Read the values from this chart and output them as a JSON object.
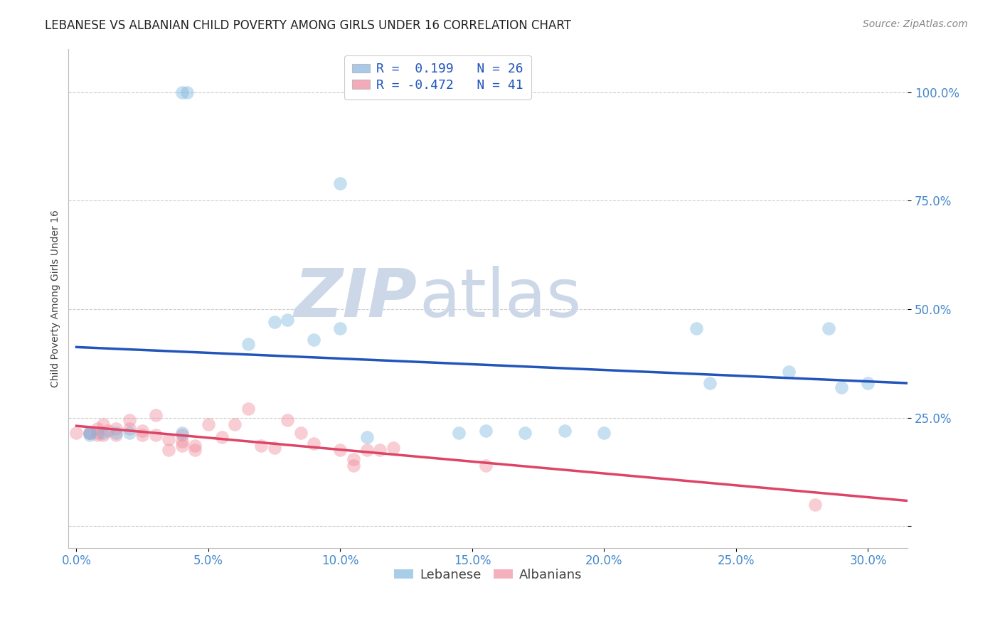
{
  "title": "LEBANESE VS ALBANIAN CHILD POVERTY AMONG GIRLS UNDER 16 CORRELATION CHART",
  "source": "Source: ZipAtlas.com",
  "ylabel": "Child Poverty Among Girls Under 16",
  "ytick_vals": [
    0.0,
    0.25,
    0.5,
    0.75,
    1.0
  ],
  "ytick_labels": [
    "",
    "25.0%",
    "50.0%",
    "75.0%",
    "100.0%"
  ],
  "xtick_vals": [
    0.0,
    0.05,
    0.1,
    0.15,
    0.2,
    0.25,
    0.3
  ],
  "xtick_labels": [
    "0.0%",
    "5.0%",
    "10.0%",
    "15.0%",
    "20.0%",
    "25.0%",
    "30.0%"
  ],
  "xmin": -0.003,
  "xmax": 0.315,
  "ymin": -0.05,
  "ymax": 1.1,
  "watermark_top": "ZIP",
  "watermark_bot": "atlas",
  "legend_entries": [
    {
      "label": "R =  0.199   N = 26",
      "color": "#aac8e8"
    },
    {
      "label": "R = -0.472   N = 41",
      "color": "#f4aab8"
    }
  ],
  "lebanese_color": "#82b8e0",
  "albanian_color": "#f090a0",
  "lebanese_line_color": "#2255bb",
  "albanian_line_color": "#dd4466",
  "lebanese_points_x": [
    0.04,
    0.042,
    0.1,
    0.065,
    0.075,
    0.08,
    0.09,
    0.1,
    0.11,
    0.145,
    0.155,
    0.17,
    0.185,
    0.2,
    0.235,
    0.24,
    0.27,
    0.285,
    0.29,
    0.3,
    0.005,
    0.005,
    0.01,
    0.015,
    0.02,
    0.04
  ],
  "lebanese_points_y": [
    1.0,
    1.0,
    0.79,
    0.42,
    0.47,
    0.475,
    0.43,
    0.455,
    0.205,
    0.215,
    0.22,
    0.215,
    0.22,
    0.215,
    0.455,
    0.33,
    0.355,
    0.455,
    0.32,
    0.33,
    0.215,
    0.21,
    0.215,
    0.215,
    0.215,
    0.215
  ],
  "albanian_points_x": [
    0.0,
    0.005,
    0.005,
    0.008,
    0.008,
    0.008,
    0.01,
    0.01,
    0.012,
    0.015,
    0.015,
    0.02,
    0.02,
    0.025,
    0.025,
    0.03,
    0.03,
    0.035,
    0.035,
    0.04,
    0.04,
    0.04,
    0.045,
    0.045,
    0.05,
    0.055,
    0.06,
    0.065,
    0.07,
    0.075,
    0.08,
    0.085,
    0.09,
    0.1,
    0.105,
    0.105,
    0.11,
    0.115,
    0.12,
    0.155,
    0.28
  ],
  "albanian_points_y": [
    0.215,
    0.215,
    0.215,
    0.225,
    0.215,
    0.21,
    0.235,
    0.21,
    0.22,
    0.225,
    0.21,
    0.245,
    0.225,
    0.22,
    0.21,
    0.255,
    0.21,
    0.2,
    0.175,
    0.21,
    0.195,
    0.185,
    0.185,
    0.175,
    0.235,
    0.205,
    0.235,
    0.27,
    0.185,
    0.18,
    0.245,
    0.215,
    0.19,
    0.175,
    0.155,
    0.14,
    0.175,
    0.175,
    0.18,
    0.14,
    0.05
  ],
  "title_fontsize": 12,
  "axis_label_fontsize": 10,
  "tick_fontsize": 12,
  "source_fontsize": 10,
  "background_color": "#ffffff",
  "grid_color": "#cccccc",
  "tick_color": "#4488cc",
  "watermark_color": "#ccd8e8",
  "marker_size": 180,
  "marker_alpha": 0.45,
  "line_width": 2.5
}
